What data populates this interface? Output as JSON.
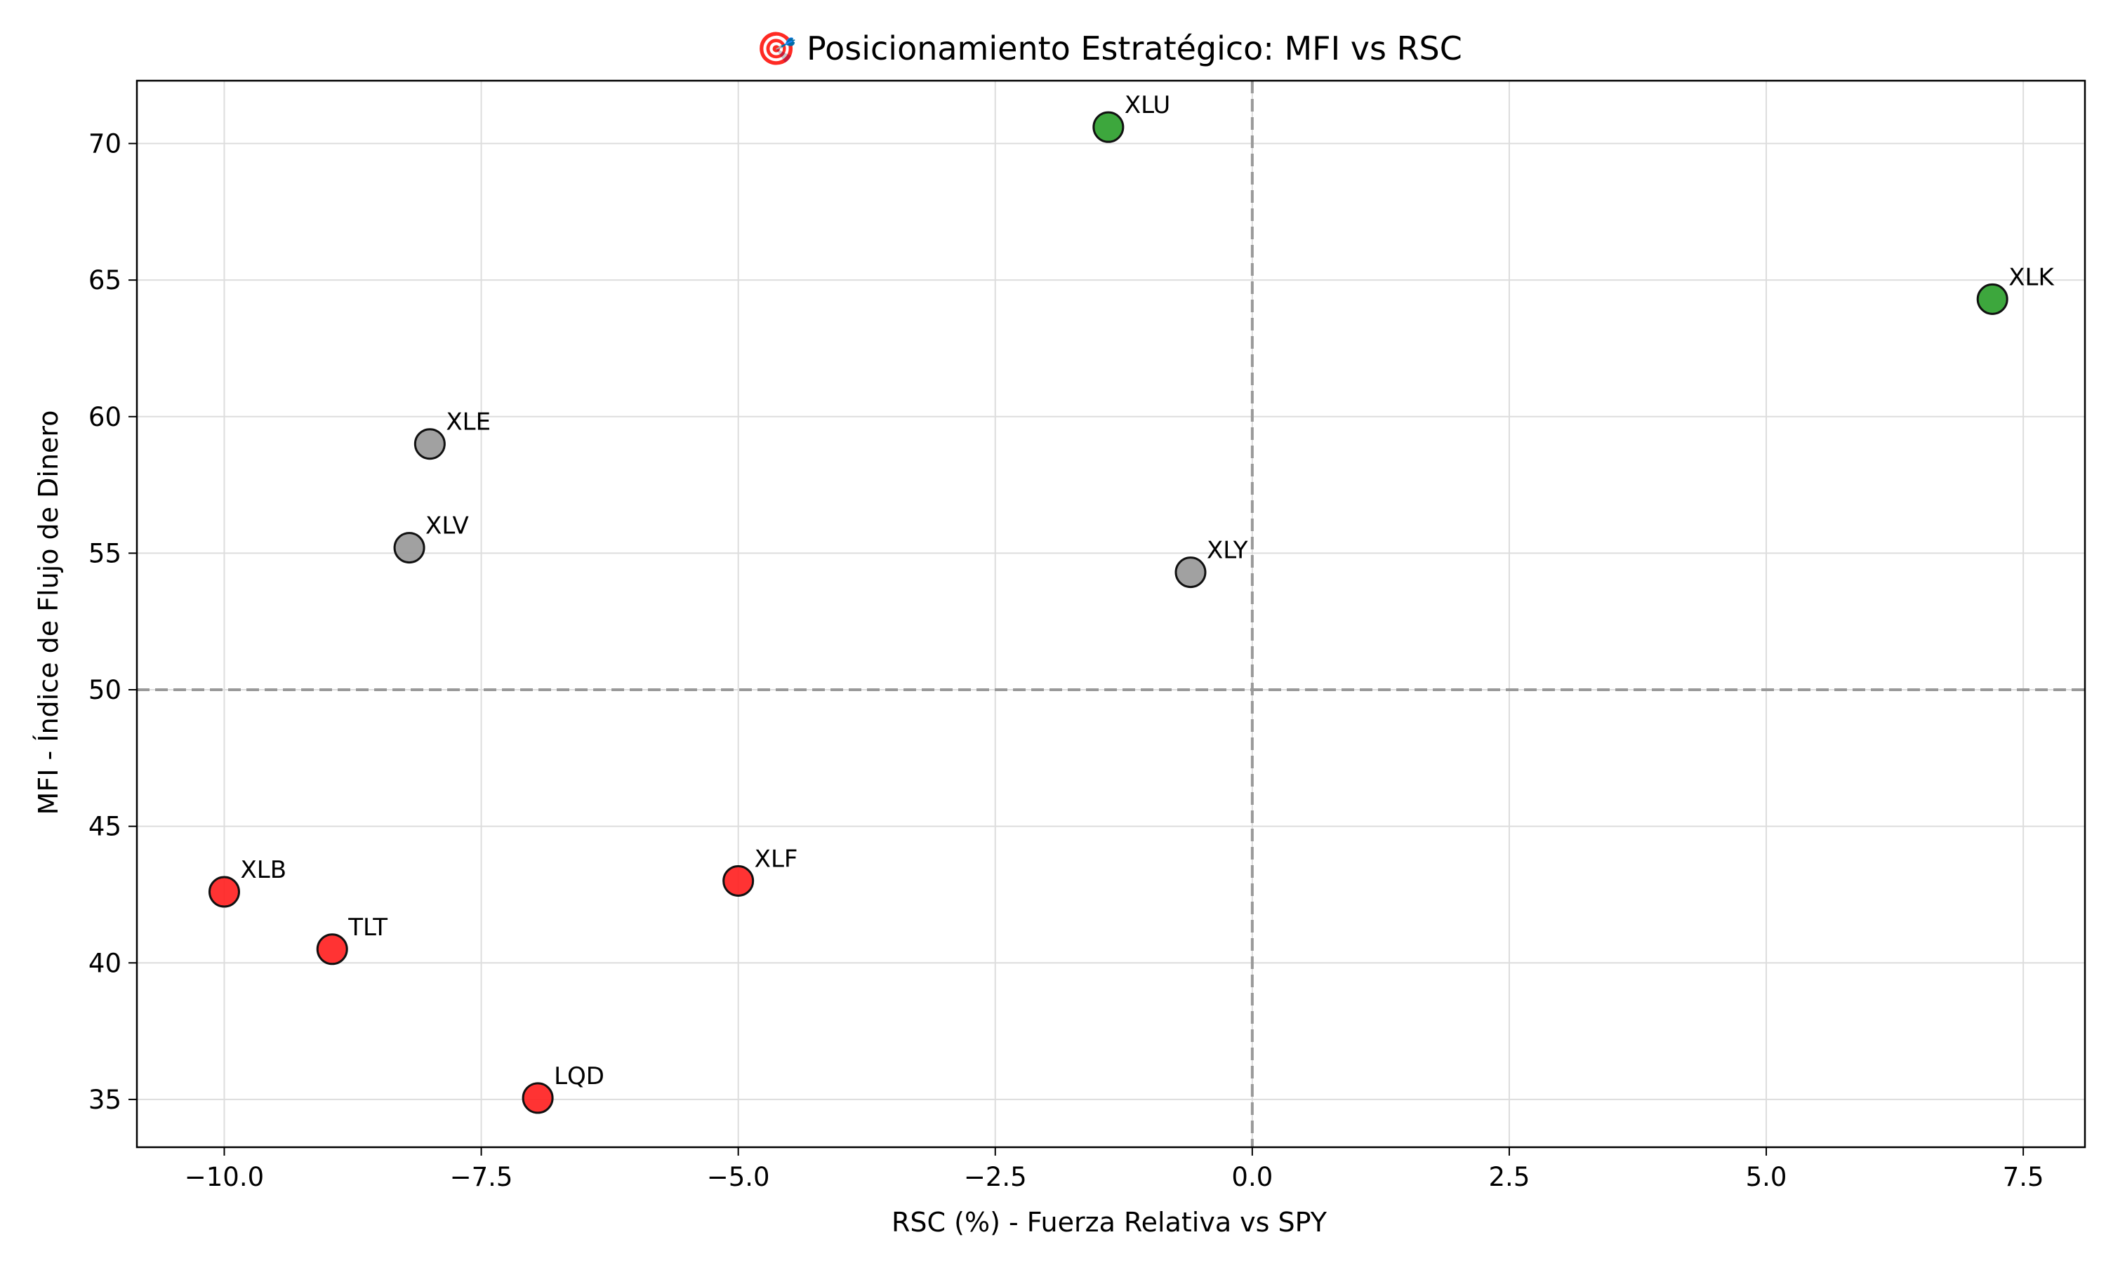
{
  "chart_data": {
    "type": "scatter",
    "title": "🎯 Posicionamiento Estratégico: MFI vs RSC",
    "xlabel": "RSC (%) - Fuerza Relativa vs SPY",
    "ylabel": "MFI - Índice de Flujo de Dinero",
    "xlim": [
      -10.85,
      8.1
    ],
    "ylim": [
      33.25,
      72.3
    ],
    "xticks": [
      -10.0,
      -7.5,
      -5.0,
      -2.5,
      0.0,
      2.5,
      5.0,
      7.5
    ],
    "xtick_labels": [
      "−10.0",
      "−7.5",
      "−5.0",
      "−2.5",
      "0.0",
      "2.5",
      "5.0",
      "7.5"
    ],
    "yticks": [
      35,
      40,
      45,
      50,
      55,
      60,
      65,
      70
    ],
    "ytick_labels": [
      "35",
      "40",
      "45",
      "50",
      "55",
      "60",
      "65",
      "70"
    ],
    "grid": true,
    "reference_lines": {
      "x": 0,
      "y": 50
    },
    "colors": {
      "green": "#2ca02c",
      "gray": "#999999",
      "red": "#ff2222",
      "refline": "#999999",
      "grid": "#dddddd"
    },
    "points": [
      {
        "label": "XLU",
        "x": -1.4,
        "y": 70.6,
        "color": "green"
      },
      {
        "label": "XLK",
        "x": 7.2,
        "y": 64.3,
        "color": "green"
      },
      {
        "label": "XLE",
        "x": -8.0,
        "y": 59.0,
        "color": "gray"
      },
      {
        "label": "XLV",
        "x": -8.2,
        "y": 55.2,
        "color": "gray"
      },
      {
        "label": "XLY",
        "x": -0.6,
        "y": 54.3,
        "color": "gray"
      },
      {
        "label": "XLB",
        "x": -10.0,
        "y": 42.6,
        "color": "red"
      },
      {
        "label": "XLF",
        "x": -5.0,
        "y": 43.0,
        "color": "red"
      },
      {
        "label": "TLT",
        "x": -8.95,
        "y": 40.5,
        "color": "red"
      },
      {
        "label": "LQD",
        "x": -6.95,
        "y": 35.05,
        "color": "red"
      }
    ]
  }
}
